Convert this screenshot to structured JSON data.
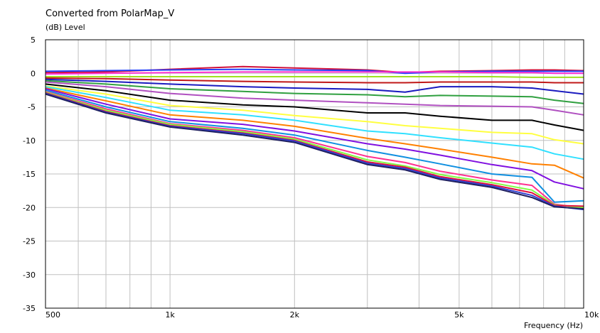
{
  "chart_data": {
    "type": "line",
    "title": "Converted from PolarMap_V",
    "ylabel": "(dB)  Level",
    "xlabel": "Frequency  (Hz)",
    "xscale": "log",
    "xlim": [
      500,
      10000
    ],
    "ylim": [
      -35,
      5
    ],
    "grid": true,
    "legend": "none",
    "x_ticks": [
      {
        "value": 500,
        "label": "500"
      },
      {
        "value": 1000,
        "label": "1k"
      },
      {
        "value": 2000,
        "label": "2k"
      },
      {
        "value": 5000,
        "label": "5k"
      },
      {
        "value": 10000,
        "label": "10k"
      }
    ],
    "y_ticks": [
      {
        "value": 5,
        "label": "5"
      },
      {
        "value": 0,
        "label": "0"
      },
      {
        "value": -5,
        "label": "-5"
      },
      {
        "value": -10,
        "label": "-10"
      },
      {
        "value": -15,
        "label": "-15"
      },
      {
        "value": -20,
        "label": "-20"
      },
      {
        "value": -25,
        "label": "-25"
      },
      {
        "value": -30,
        "label": "-30"
      },
      {
        "value": -35,
        "label": "-35"
      }
    ],
    "x": [
      500,
      700,
      1000,
      1500,
      2000,
      3000,
      3700,
      4500,
      6000,
      7500,
      8500,
      10000
    ],
    "series": [
      {
        "color": "#d0103a",
        "values": [
          0.1,
          0.2,
          0.6,
          1.0,
          0.8,
          0.5,
          0.1,
          0.3,
          0.4,
          0.5,
          0.5,
          0.4
        ]
      },
      {
        "color": "#2040ff",
        "values": [
          0.3,
          0.4,
          0.5,
          0.6,
          0.5,
          0.4,
          0.0,
          0.2,
          0.3,
          0.3,
          0.3,
          0.3
        ]
      },
      {
        "color": "#ff2fd0",
        "values": [
          -0.1,
          0.0,
          0.1,
          0.2,
          0.2,
          0.2,
          0.2,
          0.2,
          0.1,
          0.1,
          0.0,
          0.0
        ]
      },
      {
        "color": "#a0e020",
        "values": [
          -0.5,
          -0.5,
          -0.5,
          -0.5,
          -0.5,
          -0.5,
          -0.5,
          -0.5,
          -0.5,
          -0.6,
          -0.6,
          -0.6
        ]
      },
      {
        "color": "#c01818",
        "values": [
          -0.7,
          -0.8,
          -1.0,
          -1.2,
          -1.3,
          -1.4,
          -1.4,
          -1.3,
          -1.3,
          -1.3,
          -1.4,
          -1.4
        ]
      },
      {
        "color": "#1a1abf",
        "values": [
          -0.9,
          -1.2,
          -1.6,
          -2.0,
          -2.2,
          -2.4,
          -2.8,
          -2.0,
          -2.0,
          -2.2,
          -2.6,
          -3.1
        ]
      },
      {
        "color": "#30a040",
        "values": [
          -1.1,
          -1.6,
          -2.3,
          -2.7,
          -3.0,
          -3.2,
          -3.5,
          -3.3,
          -3.4,
          -3.5,
          -4.0,
          -4.5
        ]
      },
      {
        "color": "#b050c0",
        "values": [
          -1.3,
          -2.0,
          -3.0,
          -3.7,
          -4.0,
          -4.4,
          -4.6,
          -4.8,
          -4.9,
          -5.0,
          -5.5,
          -6.2
        ]
      },
      {
        "color": "#000000",
        "values": [
          -1.6,
          -2.6,
          -4.0,
          -4.7,
          -5.0,
          -5.9,
          -5.9,
          -6.4,
          -7.0,
          -7.0,
          -7.7,
          -8.5
        ]
      },
      {
        "color": "#ffff40",
        "values": [
          -1.9,
          -3.1,
          -4.8,
          -5.5,
          -6.3,
          -7.2,
          -7.8,
          -8.2,
          -8.8,
          -9.0,
          -9.9,
          -10.5
        ]
      },
      {
        "color": "#30e0ff",
        "values": [
          -2.0,
          -3.6,
          -5.5,
          -6.2,
          -7.0,
          -8.6,
          -9.0,
          -9.6,
          -10.4,
          -11.0,
          -12.0,
          -12.8
        ]
      },
      {
        "color": "#ff8000",
        "values": [
          -2.2,
          -4.1,
          -6.2,
          -7.0,
          -7.9,
          -9.7,
          -10.5,
          -11.3,
          -12.5,
          -13.5,
          -13.7,
          -15.6
        ]
      },
      {
        "color": "#8010e0",
        "values": [
          -2.3,
          -4.6,
          -6.8,
          -7.6,
          -8.6,
          -10.5,
          -11.3,
          -12.2,
          -13.6,
          -14.5,
          -16.2,
          -17.2
        ]
      },
      {
        "color": "#1090e0",
        "values": [
          -2.5,
          -5.0,
          -7.2,
          -8.2,
          -9.2,
          -11.5,
          -12.5,
          -13.5,
          -15.0,
          -15.5,
          -19.2,
          -19.0
        ]
      },
      {
        "color": "#ff3090",
        "values": [
          -2.7,
          -5.3,
          -7.5,
          -8.5,
          -9.6,
          -12.4,
          -13.3,
          -14.6,
          -15.9,
          -16.7,
          -19.5,
          -20.1
        ]
      },
      {
        "color": "#80ff40",
        "values": [
          -2.8,
          -5.5,
          -7.6,
          -8.7,
          -9.8,
          -12.9,
          -13.8,
          -15.1,
          -16.3,
          -17.4,
          -19.6,
          -20.0
        ]
      },
      {
        "color": "#e01040",
        "values": [
          -2.9,
          -5.7,
          -7.8,
          -8.9,
          -10.0,
          -13.2,
          -14.0,
          -15.4,
          -16.6,
          -17.8,
          -19.7,
          -19.8
        ]
      },
      {
        "color": "#3040d0",
        "values": [
          -3.0,
          -5.8,
          -7.9,
          -9.0,
          -10.1,
          -13.4,
          -14.2,
          -15.6,
          -16.8,
          -18.2,
          -19.8,
          -20.3
        ]
      },
      {
        "color": "#202060",
        "values": [
          -3.1,
          -5.9,
          -8.0,
          -9.2,
          -10.3,
          -13.6,
          -14.4,
          -15.8,
          -17.0,
          -18.5,
          -19.9,
          -20.2
        ]
      }
    ]
  }
}
